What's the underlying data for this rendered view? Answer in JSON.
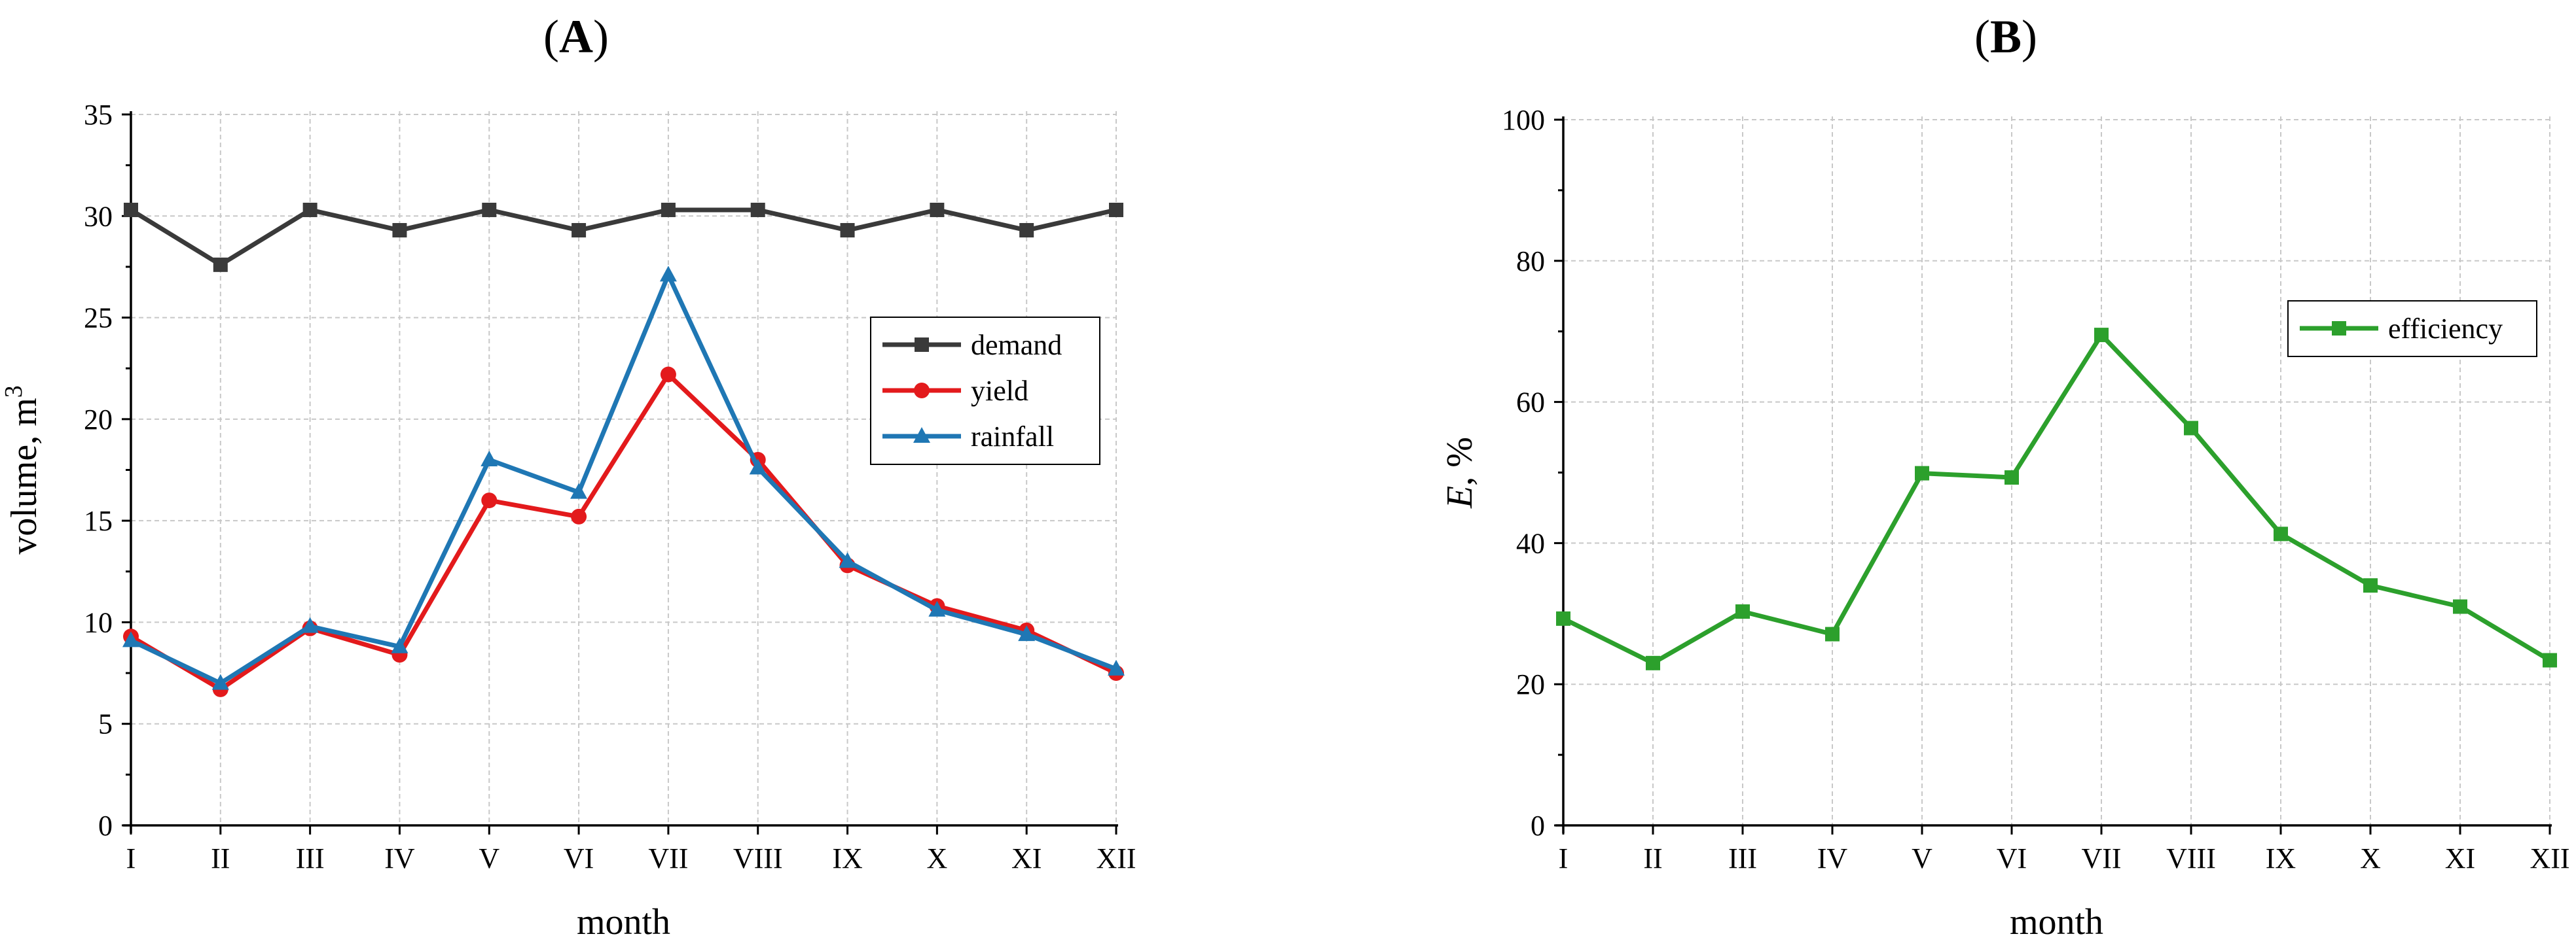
{
  "chart_data": [
    {
      "type": "line",
      "title": "A",
      "title_prefix": "(",
      "title_suffix": ")",
      "xlabel": "month",
      "ylabel": "volume, m",
      "ylabel_sup": "3",
      "categories": [
        "I",
        "II",
        "III",
        "IV",
        "V",
        "VI",
        "VII",
        "VIII",
        "IX",
        "X",
        "XI",
        "XII"
      ],
      "ylim": [
        0,
        35
      ],
      "yticks": [
        "0",
        "5",
        "10",
        "15",
        "20",
        "25",
        "30",
        "35"
      ],
      "grid": true,
      "legend_position": "right",
      "series": [
        {
          "name": "demand",
          "color": "#3a3a3a",
          "marker": "square",
          "values": [
            30.3,
            27.6,
            30.3,
            29.3,
            30.3,
            29.3,
            30.3,
            30.3,
            29.3,
            30.3,
            29.3,
            30.3
          ]
        },
        {
          "name": "yield",
          "color": "#e31a1c",
          "marker": "circle",
          "values": [
            9.3,
            6.7,
            9.7,
            8.4,
            16.0,
            15.2,
            22.2,
            18.0,
            12.8,
            10.8,
            9.6,
            7.5
          ]
        },
        {
          "name": "rainfall",
          "color": "#1f77b4",
          "marker": "triangle",
          "values": [
            9.1,
            7.0,
            9.8,
            8.8,
            18.0,
            16.4,
            27.1,
            17.6,
            13.0,
            10.6,
            9.4,
            7.7
          ]
        }
      ]
    },
    {
      "type": "line",
      "title": "B",
      "title_prefix": "(",
      "title_suffix": ")",
      "xlabel": "month",
      "ylabel_italic": "E",
      "ylabel_rest": ", %",
      "categories": [
        "I",
        "II",
        "III",
        "IV",
        "V",
        "VI",
        "VII",
        "VIII",
        "IX",
        "X",
        "XI",
        "XII"
      ],
      "ylim": [
        0,
        100
      ],
      "yticks": [
        "0",
        "20",
        "40",
        "60",
        "80",
        "100"
      ],
      "grid": true,
      "legend_position": "top-right",
      "series": [
        {
          "name": "efficiency",
          "color": "#2ca02c",
          "marker": "square",
          "values": [
            29.3,
            23.0,
            30.3,
            27.1,
            49.9,
            49.3,
            69.5,
            56.3,
            41.3,
            34.0,
            31.0,
            23.4
          ]
        }
      ]
    }
  ]
}
